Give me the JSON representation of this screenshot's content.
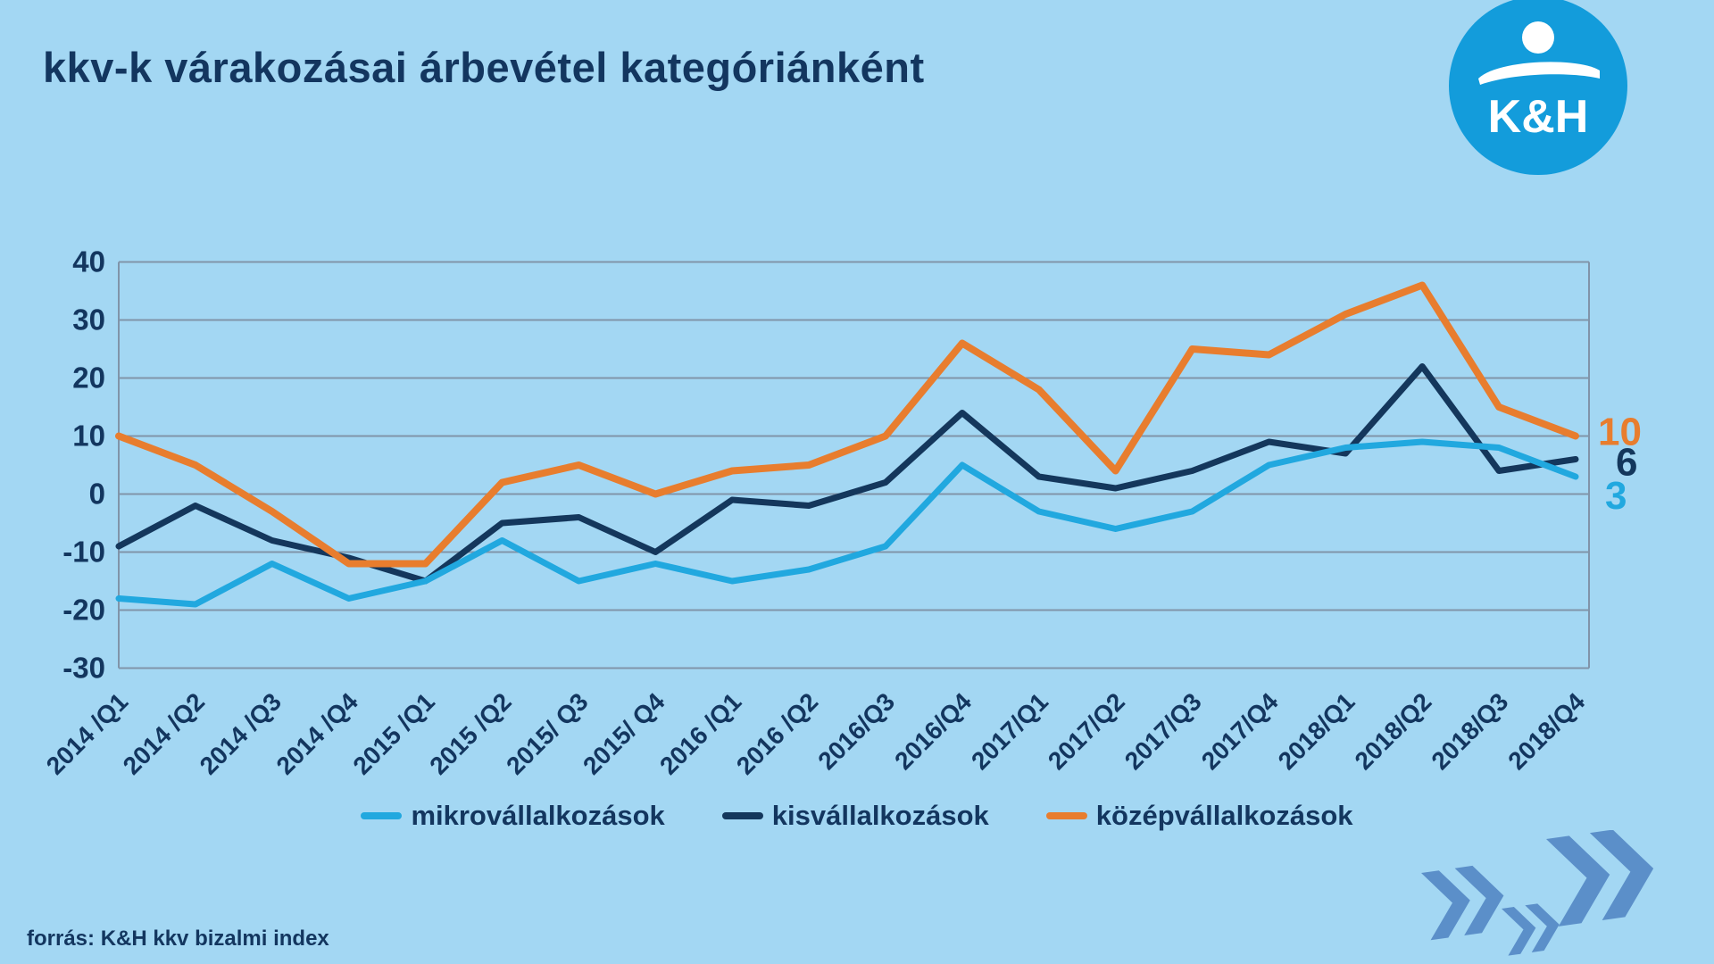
{
  "title": "kkv-k várakozásai árbevétel kategóriánként",
  "logo": {
    "text": "K&H"
  },
  "source_note": "forrás: K&H kkv bizalmi index",
  "colors": {
    "background": "#A3D7F3",
    "title_text": "#13365F",
    "grid_line": "#8094A9",
    "axis_text": "#13365F",
    "legend_text": "#13365F",
    "logo_circle": "#139CDB",
    "logo_text": "#FFFFFF",
    "arrows": "#5B8FC9"
  },
  "chart_data": {
    "type": "line",
    "title": "",
    "xlabel": "",
    "ylabel": "",
    "ylim": [
      -30,
      40
    ],
    "yticks": [
      40,
      30,
      20,
      10,
      0,
      -10,
      -20,
      -30
    ],
    "grid": true,
    "legend_position": "bottom",
    "categories": [
      "2014 /Q1",
      "2014 /Q2",
      "2014 /Q3",
      "2014 /Q4",
      "2015 /Q1",
      "2015 /Q2",
      "2015/ Q3",
      "2015/ Q4",
      "2016 /Q1",
      "2016 /Q2",
      "2016/Q3",
      "2016/Q4",
      "2017/Q1",
      "2017/Q2",
      "2017/Q3",
      "2017/Q4",
      "2018/Q1",
      "2018/Q2",
      "2018/Q3",
      "2018/Q4"
    ],
    "series": [
      {
        "name": "mikrovállalkozások",
        "color": "#21A8DF",
        "values": [
          -18,
          -19,
          -12,
          -18,
          -15,
          -8,
          -15,
          -12,
          -15,
          -13,
          -9,
          5,
          -3,
          -6,
          -3,
          5,
          8,
          9,
          8,
          3
        ],
        "end_label": "3"
      },
      {
        "name": "kisvállalkozások",
        "color": "#14375C",
        "values": [
          -9,
          -2,
          -8,
          -11,
          -15,
          -5,
          -4,
          -10,
          -1,
          -2,
          2,
          14,
          3,
          1,
          4,
          9,
          7,
          22,
          4,
          6
        ],
        "end_label": "6"
      },
      {
        "name": "középvállalkozások",
        "color": "#E87D2E",
        "values": [
          10,
          5,
          -3,
          -12,
          -12,
          2,
          5,
          0,
          4,
          5,
          10,
          26,
          18,
          4,
          25,
          24,
          31,
          36,
          15,
          10
        ],
        "end_label": "10"
      }
    ]
  }
}
